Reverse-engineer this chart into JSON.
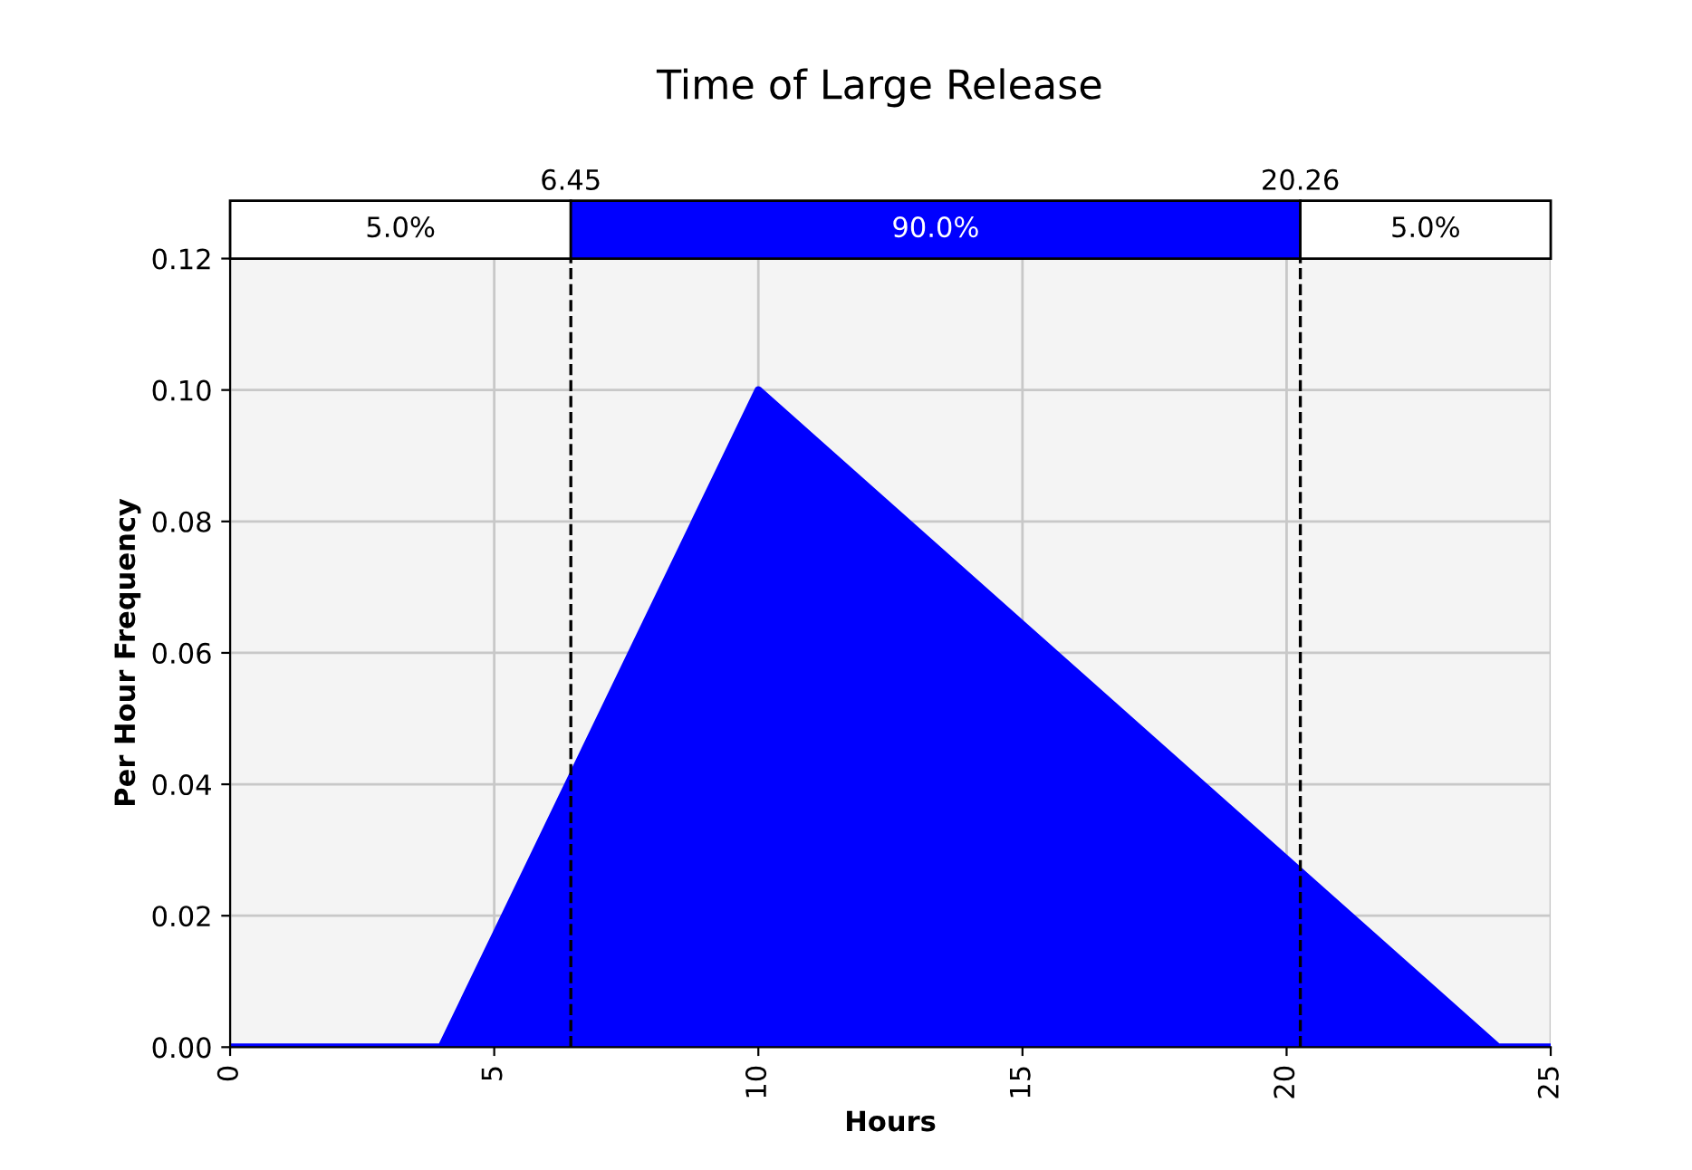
{
  "chart_data": {
    "type": "area",
    "title": "Time of Large Release",
    "xlabel": "Hours",
    "ylabel": "Per Hour Frequency",
    "x": [
      0,
      4,
      10,
      24,
      25
    ],
    "series": [
      {
        "color": "#0000ff",
        "values": [
          0,
          0,
          0.1,
          0,
          0
        ]
      }
    ],
    "xlim": [
      0,
      25
    ],
    "xticks": [
      0,
      5,
      10,
      15,
      20,
      25
    ],
    "ylim": [
      0,
      0.12
    ],
    "yticks": [
      {
        "value": 0,
        "label": "0.00"
      },
      {
        "value": 0.02,
        "label": "0.02"
      },
      {
        "value": 0.04,
        "label": "0.04"
      },
      {
        "value": 0.06,
        "label": "0.06"
      },
      {
        "value": 0.08,
        "label": "0.08"
      },
      {
        "value": 0.1,
        "label": "0.10"
      },
      {
        "value": 0.12,
        "label": "0.12"
      }
    ],
    "grid": true,
    "ref_lines": [
      {
        "axis": "x",
        "value": 6.45,
        "label": "6.45",
        "color": "#000000",
        "line_style": "dashed"
      },
      {
        "axis": "x",
        "value": 20.26,
        "label": "20.26",
        "color": "#000000",
        "line_style": "dashed"
      }
    ],
    "annotations": [
      "5.0%",
      "90.0%",
      "5.0%"
    ]
  }
}
